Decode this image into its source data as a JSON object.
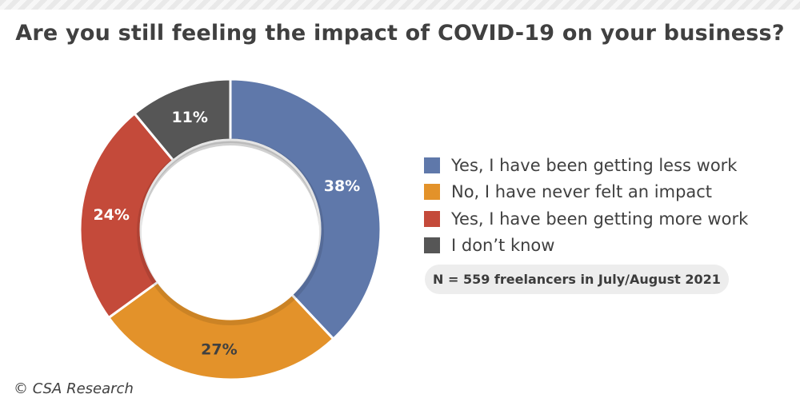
{
  "title": "Are you still feeling the impact of COVID-19 on your business?",
  "note": "N = 559 freelancers in July/August 2021",
  "credit": "© CSA Research",
  "chart_data": {
    "type": "pie",
    "variant": "donut",
    "title": "Are you still feeling the impact of COVID-19 on your business?",
    "legend_position": "right",
    "slices": [
      {
        "label": "Yes, I have been getting less work",
        "value": 38,
        "display": "38%",
        "color": "#5f78aa",
        "label_color": "#ffffff"
      },
      {
        "label": "No, I have never felt an impact",
        "value": 27,
        "display": "27%",
        "color": "#e3922a",
        "label_color": "#404040"
      },
      {
        "label": "Yes, I have been getting more work",
        "value": 24,
        "display": "24%",
        "color": "#c44a3a",
        "label_color": "#ffffff"
      },
      {
        "label": "I don’t know",
        "value": 11,
        "display": "11%",
        "color": "#565656",
        "label_color": "#ffffff"
      }
    ]
  }
}
